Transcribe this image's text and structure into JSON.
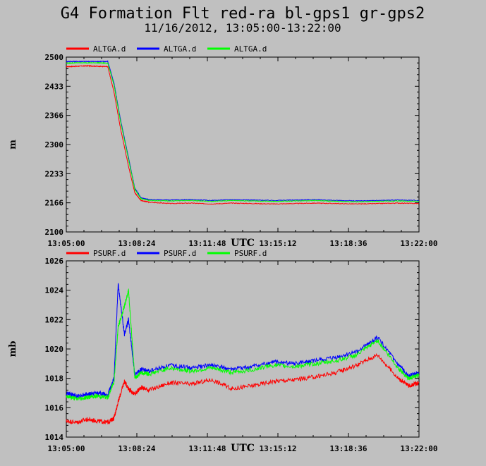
{
  "header": {
    "title": "G4 Formation Flt red-ra bl-gps1 gr-gps2",
    "subtitle": "11/16/2012, 13:05:00-13:22:00"
  },
  "chart_data": [
    {
      "type": "line",
      "ylabel": "m",
      "xlabel": "UTC",
      "x_ticks": [
        "13:05:00",
        "13:08:24",
        "13:11:48",
        "13:15:12",
        "13:18:36",
        "13:22:00"
      ],
      "x_range_min": [
        0,
        17
      ],
      "y_ticks": [
        "2500",
        "2433",
        "2366",
        "2300",
        "2233",
        "2166",
        "2100"
      ],
      "ylim": [
        2100,
        2500
      ],
      "legend_position": "top-left",
      "series": [
        {
          "name": "ALTGA.d",
          "color": "#ff0000",
          "x": [
            0,
            0.5,
            1,
            1.5,
            2,
            2.3,
            2.6,
            3.0,
            3.3,
            3.6,
            4.0,
            5,
            6,
            7,
            8,
            9,
            10,
            11,
            12,
            13,
            14,
            15,
            16,
            17
          ],
          "y": [
            2478,
            2479,
            2480,
            2479,
            2478,
            2420,
            2340,
            2250,
            2190,
            2172,
            2168,
            2165,
            2166,
            2164,
            2166,
            2165,
            2164,
            2165,
            2166,
            2165,
            2164,
            2165,
            2166,
            2165
          ]
        },
        {
          "name": "ALTGA.d",
          "color": "#0000ff",
          "x": [
            0,
            0.5,
            1,
            1.5,
            2,
            2.3,
            2.6,
            3.0,
            3.3,
            3.6,
            4.0,
            5,
            6,
            7,
            8,
            9,
            10,
            11,
            12,
            13,
            14,
            15,
            16,
            17
          ],
          "y": [
            2490,
            2490,
            2490,
            2490,
            2490,
            2440,
            2360,
            2270,
            2200,
            2178,
            2174,
            2173,
            2174,
            2172,
            2174,
            2173,
            2172,
            2173,
            2174,
            2172,
            2171,
            2172,
            2173,
            2172
          ]
        },
        {
          "name": "ALTGA.d",
          "color": "#00ff00",
          "x": [
            0,
            0.5,
            1,
            1.5,
            2,
            2.3,
            2.6,
            3.0,
            3.3,
            3.6,
            4.0,
            5,
            6,
            7,
            8,
            9,
            10,
            11,
            12,
            13,
            14,
            15,
            16,
            17
          ],
          "y": [
            2486,
            2487,
            2487,
            2487,
            2486,
            2436,
            2356,
            2266,
            2198,
            2176,
            2172,
            2171,
            2172,
            2170,
            2172,
            2171,
            2170,
            2171,
            2172,
            2170,
            2169,
            2170,
            2171,
            2170
          ]
        }
      ]
    },
    {
      "type": "line",
      "ylabel": "mb",
      "xlabel": "UTC",
      "x_ticks": [
        "13:05:00",
        "13:08:24",
        "13:11:48",
        "13:15:12",
        "13:18:36",
        "13:22:00"
      ],
      "x_range_min": [
        0,
        17
      ],
      "y_ticks": [
        "1026",
        "1024",
        "1022",
        "1020",
        "1018",
        "1016",
        "1014"
      ],
      "ylim": [
        1014,
        1026
      ],
      "legend_position": "top-left",
      "series": [
        {
          "name": "PSURF.d",
          "color": "#ff0000",
          "x": [
            0,
            0.5,
            1,
            1.5,
            2,
            2.3,
            2.5,
            2.8,
            3.0,
            3.3,
            3.6,
            4,
            5,
            6,
            7,
            8,
            9,
            10,
            11,
            12,
            13,
            14,
            15,
            16,
            16.5,
            17
          ],
          "y": [
            1015.1,
            1015.0,
            1015.2,
            1015.1,
            1015.0,
            1015.3,
            1016.4,
            1017.8,
            1017.3,
            1016.9,
            1017.4,
            1017.2,
            1017.7,
            1017.6,
            1017.9,
            1017.3,
            1017.5,
            1017.8,
            1017.9,
            1018.1,
            1018.4,
            1018.9,
            1019.6,
            1018.0,
            1017.5,
            1017.7
          ]
        },
        {
          "name": "PSURF.d",
          "color": "#0000ff",
          "x": [
            0,
            0.5,
            1,
            1.5,
            2,
            2.3,
            2.5,
            2.8,
            3.0,
            3.3,
            3.6,
            4,
            5,
            6,
            7,
            8,
            9,
            10,
            11,
            12,
            13,
            14,
            15,
            16,
            16.5,
            17
          ],
          "y": [
            1017.0,
            1016.8,
            1016.9,
            1017.0,
            1016.9,
            1018.0,
            1024.4,
            1021.0,
            1022.0,
            1018.2,
            1018.6,
            1018.5,
            1018.9,
            1018.7,
            1018.9,
            1018.6,
            1018.8,
            1019.1,
            1019.0,
            1019.2,
            1019.4,
            1019.8,
            1020.8,
            1018.9,
            1018.2,
            1018.4
          ]
        },
        {
          "name": "PSURF.d",
          "color": "#00ff00",
          "x": [
            0,
            0.5,
            1,
            1.5,
            2,
            2.3,
            2.5,
            2.8,
            3.0,
            3.3,
            3.6,
            4,
            5,
            6,
            7,
            8,
            9,
            10,
            11,
            12,
            13,
            14,
            15,
            16,
            16.5,
            17
          ],
          "y": [
            1016.8,
            1016.6,
            1016.7,
            1016.8,
            1016.7,
            1017.8,
            1021.5,
            1022.9,
            1024.0,
            1018.0,
            1018.4,
            1018.3,
            1018.7,
            1018.5,
            1018.7,
            1018.4,
            1018.6,
            1018.9,
            1018.8,
            1019.0,
            1019.2,
            1019.6,
            1020.6,
            1018.7,
            1018.0,
            1018.2
          ]
        }
      ]
    }
  ]
}
